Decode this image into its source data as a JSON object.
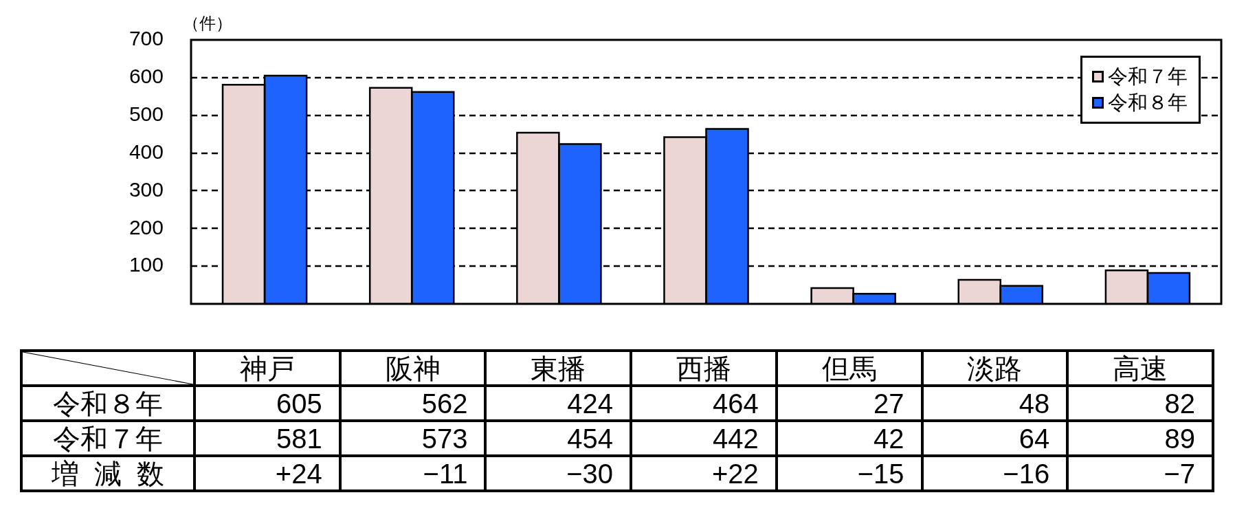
{
  "chart_data": {
    "type": "bar",
    "ylabel": "（件）",
    "categories": [
      "神戸",
      "阪神",
      "東播",
      "西播",
      "但馬",
      "淡路",
      "高速"
    ],
    "series": [
      {
        "name": "令和７年",
        "color": "#ebd5d5",
        "values": [
          581,
          573,
          454,
          442,
          42,
          64,
          89
        ]
      },
      {
        "name": "令和８年",
        "color": "#1f63ff",
        "values": [
          605,
          562,
          424,
          464,
          27,
          48,
          82
        ]
      }
    ],
    "ylim": [
      0,
      700
    ],
    "yticks": [
      100,
      200,
      300,
      400,
      500,
      600,
      700
    ],
    "grid": "y",
    "legend": "top right",
    "data_labels": true,
    "annotations": [
      "増減数",
      "+24",
      "−11",
      "−30",
      "+22",
      "−15",
      "−16",
      "−7"
    ]
  }
}
